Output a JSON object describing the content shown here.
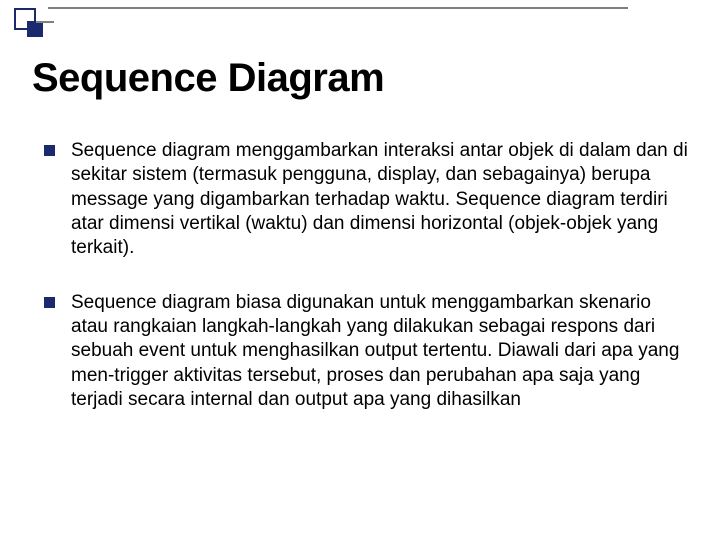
{
  "slide": {
    "title": "Sequence Diagram",
    "bullets": [
      "Sequence diagram menggambarkan interaksi antar objek di dalam dan di sekitar sistem (termasuk pengguna, display, dan sebagainya) berupa message yang digambarkan terhadap waktu. Sequence diagram terdiri atar dimensi vertikal (waktu) dan dimensi horizontal (objek-objek yang terkait).",
      "Sequence diagram biasa digunakan untuk menggambarkan skenario atau rangkaian langkah-langkah yang dilakukan sebagai respons dari sebuah event untuk menghasilkan output tertentu. Diawali dari apa yang men-trigger aktivitas tersebut, proses dan perubahan apa saja yang terjadi secara internal dan output apa yang dihasilkan"
    ]
  },
  "style": {
    "background_color": "#ffffff",
    "text_color": "#000000",
    "accent_color": "#1a2a6c",
    "line_color": "#808080",
    "title_fontsize": 40,
    "body_fontsize": 19,
    "bullet_marker": "square"
  }
}
